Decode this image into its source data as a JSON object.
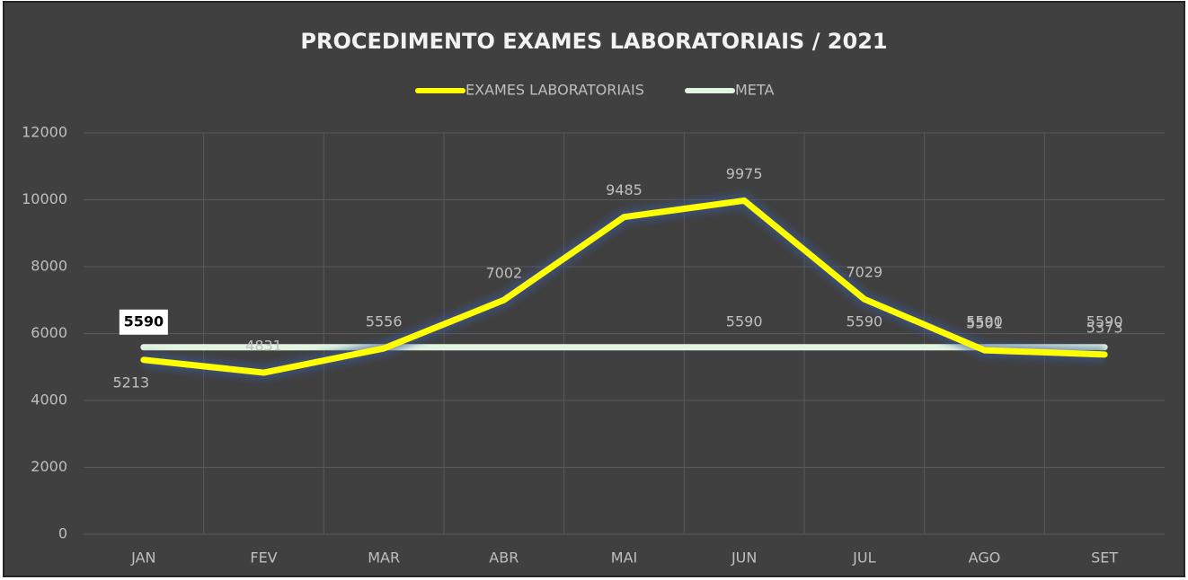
{
  "chart_data": {
    "type": "line",
    "title": "PROCEDIMENTO EXAMES LABORATORIAIS / 2021",
    "categories": [
      "JAN",
      "FEV",
      "MAR",
      "ABR",
      "MAI",
      "JUN",
      "JUL",
      "AGO",
      "SET"
    ],
    "series": [
      {
        "name": "EXAMES LABORATORIAIS",
        "color": "#ffff00",
        "glow": "#3a5a9a",
        "values": [
          5213,
          4831,
          5556,
          7002,
          9485,
          9975,
          7029,
          5501,
          5373
        ]
      },
      {
        "name": "META",
        "color": "#e2f5e0",
        "glow": "#c0501a",
        "values": [
          5590,
          5590,
          5590,
          5590,
          5590,
          5590,
          5590,
          5590,
          5590
        ],
        "value_labels": [
          "5590",
          null,
          null,
          null,
          null,
          "5590",
          "5590",
          "5590",
          "5590"
        ]
      }
    ],
    "ylim": [
      0,
      12000
    ],
    "yticks": [
      0,
      2000,
      4000,
      6000,
      8000,
      10000,
      12000
    ],
    "grid": true,
    "legend": "top"
  }
}
